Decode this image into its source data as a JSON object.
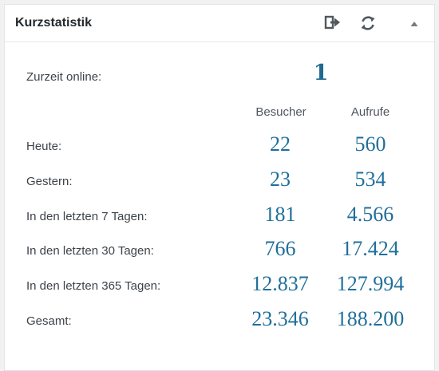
{
  "widget": {
    "title": "Kurzstatistik",
    "icons": {
      "exit": "exit-icon",
      "refresh": "refresh-icon",
      "toggle": "caret-up-icon"
    }
  },
  "online": {
    "label": "Zurzeit online:",
    "value": "1"
  },
  "columns": {
    "visitors": "Besucher",
    "views": "Aufrufe"
  },
  "rows": [
    {
      "label": "Heute:",
      "visitors": "22",
      "views": "560"
    },
    {
      "label": "Gestern:",
      "visitors": "23",
      "views": "534"
    },
    {
      "label": "In den letzten 7 Tagen:",
      "visitors": "181",
      "views": "4.566"
    },
    {
      "label": "In den letzten 30 Tagen:",
      "visitors": "766",
      "views": "17.424"
    },
    {
      "label": "In den letzten 365 Tagen:",
      "visitors": "12.837",
      "views": "127.994"
    },
    {
      "label": "Gesamt:",
      "visitors": "23.346",
      "views": "188.200"
    }
  ],
  "colors": {
    "value": "#1f6f9a",
    "icon": "#646970"
  }
}
